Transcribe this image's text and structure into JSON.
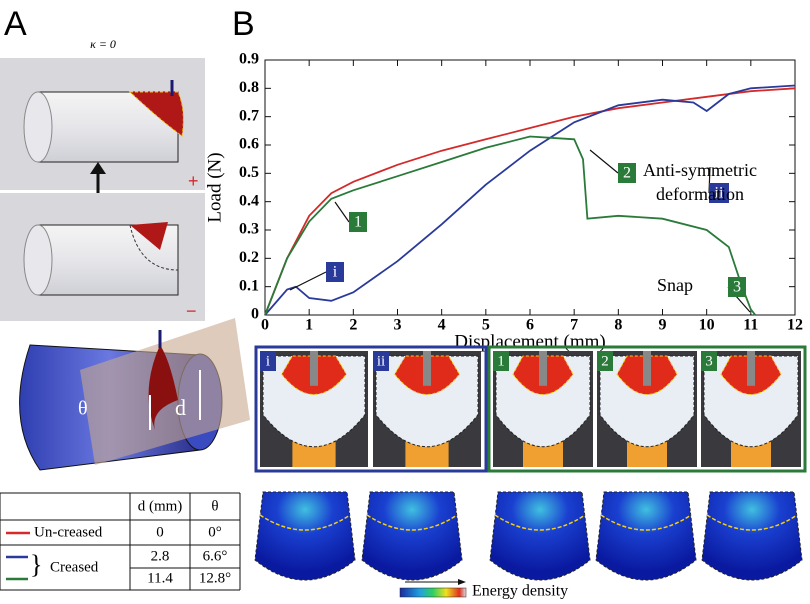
{
  "panel_a": {
    "label": "A",
    "kappa": "κ = 0",
    "plus": "+",
    "minus": "−",
    "theta": "θ",
    "d": "d",
    "table": {
      "header": [
        "d (mm)",
        "θ"
      ],
      "uncreased": {
        "name": "Un-creased",
        "d": "0",
        "theta": "0°"
      },
      "creased": {
        "name": "Creased",
        "rows": [
          [
            "2.8",
            "6.6°"
          ],
          [
            "11.4",
            "12.8°"
          ]
        ]
      }
    }
  },
  "chart_data": {
    "type": "line",
    "xlabel": "Displacement (mm)",
    "ylabel": "Load (N)",
    "xlim": [
      0,
      12
    ],
    "ylim": [
      0,
      0.9
    ],
    "xticks": [
      0,
      1,
      2,
      3,
      4,
      5,
      6,
      7,
      8,
      9,
      10,
      11,
      12
    ],
    "yticks": [
      0,
      0.1,
      0.2,
      0.3,
      0.4,
      0.5,
      0.6,
      0.7,
      0.8,
      0.9
    ],
    "series": [
      {
        "color": "#d42a2a",
        "x": [
          0,
          0.5,
          1,
          1.5,
          2,
          3,
          4,
          5,
          6,
          7,
          8,
          9,
          10,
          11,
          12
        ],
        "y": [
          0,
          0.2,
          0.35,
          0.43,
          0.47,
          0.53,
          0.58,
          0.62,
          0.66,
          0.7,
          0.73,
          0.75,
          0.77,
          0.79,
          0.8
        ]
      },
      {
        "color": "#2a3a9a",
        "x": [
          0,
          0.5,
          0.7,
          1,
          1.5,
          2,
          3,
          4,
          5,
          6,
          7,
          8,
          9,
          9.7,
          10,
          10.5,
          11,
          12
        ],
        "y": [
          0,
          0.09,
          0.1,
          0.06,
          0.05,
          0.08,
          0.19,
          0.32,
          0.46,
          0.58,
          0.68,
          0.74,
          0.76,
          0.75,
          0.72,
          0.78,
          0.8,
          0.81
        ]
      },
      {
        "color": "#2a7a3a",
        "x": [
          0,
          0.5,
          1,
          1.5,
          2,
          3,
          4,
          5,
          6,
          7,
          7.2,
          7.3,
          8,
          9,
          10,
          10.5,
          10.8,
          11,
          11.1
        ],
        "y": [
          0,
          0.2,
          0.33,
          0.41,
          0.44,
          0.49,
          0.54,
          0.59,
          0.63,
          0.62,
          0.55,
          0.34,
          0.35,
          0.34,
          0.3,
          0.24,
          0.1,
          0.02,
          0
        ]
      }
    ],
    "annotations": [
      {
        "text": "i"
      },
      {
        "text": "1"
      },
      {
        "text": "2"
      },
      {
        "text": "ii"
      },
      {
        "text": "3"
      },
      {
        "lines": [
          "Anti-symmetric",
          "deformation"
        ]
      },
      {
        "text": "Snap"
      }
    ]
  },
  "panel_b": {
    "label": "B",
    "photos_creased": [
      "i",
      "ii"
    ],
    "photos_uncreased": [
      "1",
      "2",
      "3"
    ],
    "colorbar": "Energy density"
  }
}
